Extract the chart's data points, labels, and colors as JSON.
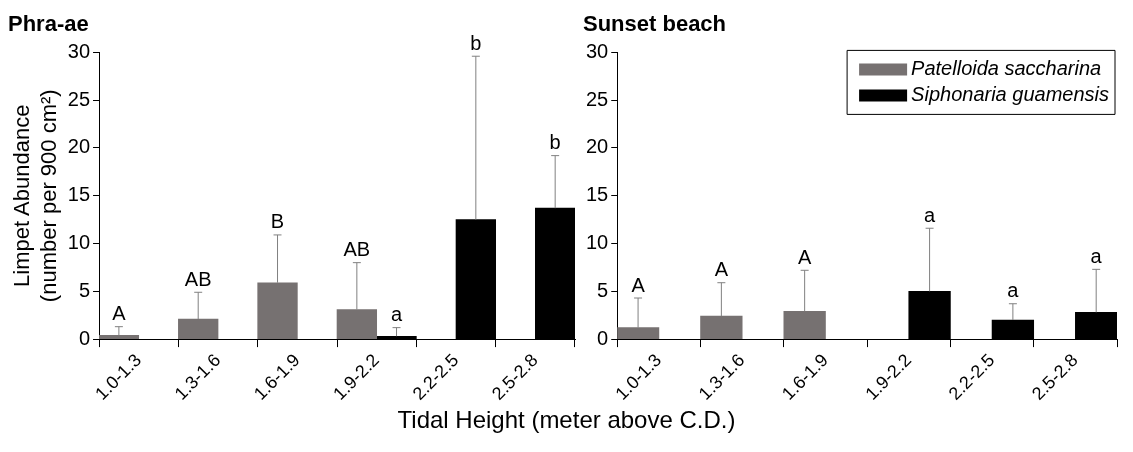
{
  "chart_data": [
    {
      "type": "bar",
      "title": "Phra-ae",
      "ylabel": "Limpet Abundance\n(number per 900 cm²)",
      "xlabel": "Tidal Height (meter above C.D.)",
      "categories": [
        "1.0-1.3",
        "1.3-1.6",
        "1.6-1.9",
        "1.9-2.2",
        "2.2-2.5",
        "2.5-2.8"
      ],
      "ylim": [
        0,
        30
      ],
      "yticks": [
        0,
        5,
        10,
        15,
        20,
        25,
        30
      ],
      "grid": false,
      "legend": false,
      "series": [
        {
          "color": "#767171",
          "values": [
            0.4,
            2.1,
            5.9,
            3.1,
            null,
            null
          ],
          "errors": [
            [
              0.4,
              1.3
            ],
            [
              2.1,
              4.9
            ],
            [
              5.9,
              10.9
            ],
            [
              3.1,
              8.0
            ],
            null,
            null
          ]
        },
        {
          "color": "#000000",
          "values": [
            null,
            null,
            null,
            0.3,
            12.5,
            13.7
          ],
          "errors": [
            null,
            null,
            null,
            [
              0.3,
              1.2
            ],
            [
              12.5,
              29.6
            ],
            [
              13.7,
              19.2
            ]
          ]
        }
      ],
      "annotations": [
        "A",
        "AB",
        "B",
        "AB",
        "a",
        "b",
        "b"
      ]
    },
    {
      "type": "bar",
      "title": "Sunset beach",
      "categories": [
        "1.0-1.3",
        "1.3-1.6",
        "1.6-1.9",
        "1.9-2.2",
        "2.2-2.5",
        "2.5-2.8"
      ],
      "ylim": [
        0,
        30
      ],
      "yticks": [
        0,
        5,
        10,
        15,
        20,
        25,
        30
      ],
      "grid": false,
      "legend": "top right",
      "series": [
        {
          "name": "Patelloida saccharina",
          "color": "#767171",
          "values": [
            1.2,
            2.4,
            2.9,
            null,
            null,
            null
          ],
          "errors": [
            [
              1.2,
              4.3
            ],
            [
              2.4,
              5.9
            ],
            [
              2.9,
              7.2
            ],
            null,
            null,
            null
          ]
        },
        {
          "name": "Siphonaria guamensis",
          "color": "#000000",
          "values": [
            null,
            null,
            null,
            5.0,
            2.0,
            2.8
          ],
          "errors": [
            null,
            null,
            null,
            [
              5.0,
              11.6
            ],
            [
              2.0,
              3.7
            ],
            [
              2.8,
              7.3
            ]
          ]
        }
      ],
      "annotations": [
        "A",
        "A",
        "A",
        "a",
        "a",
        "a"
      ]
    }
  ]
}
